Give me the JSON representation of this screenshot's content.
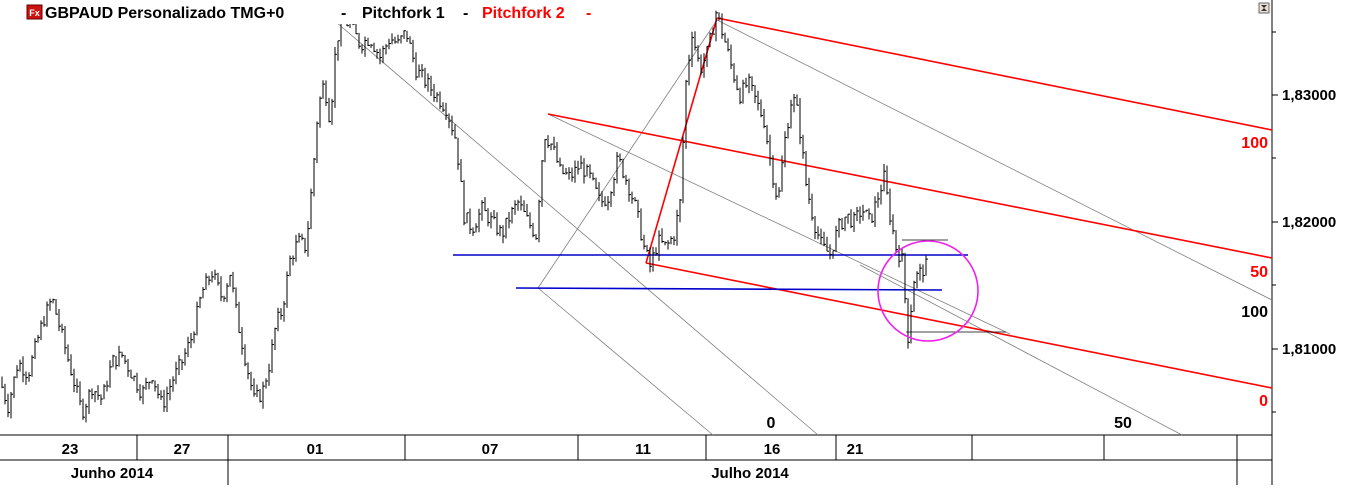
{
  "header": {
    "symbol": "GBPAUD",
    "title": "GBPAUD Personalizado TMG+0",
    "separator": "-",
    "studies": [
      {
        "label": "Pitchfork 1",
        "color": "#000000"
      },
      {
        "label": "Pitchfork 2",
        "color": "#ff0000"
      }
    ],
    "fx_icon_text": "Fx"
  },
  "colors": {
    "price": "#000000",
    "pitchfork_1": "#808080",
    "pitchfork_2": "#ff0000",
    "support": "#0000cc",
    "highlight_circle": "#ee22ee",
    "background": "#ffffff"
  },
  "chart_data": {
    "type": "candlestick",
    "symbol": "GBPAUD",
    "timeframe": "intraday",
    "y_axis": {
      "position": "right",
      "ticks": [
        "1,83000",
        "1,82000",
        "1,81000"
      ],
      "tick_values": [
        1.83,
        1.82,
        1.81
      ],
      "range": [
        1.8035,
        1.8375
      ]
    },
    "x_axis": {
      "day_ticks": [
        "23",
        "27",
        "01",
        "07",
        "11",
        "16",
        "21"
      ],
      "months": [
        "Junho 2014",
        "Julho 2014"
      ]
    },
    "price_path": [
      [
        0,
        1.8075
      ],
      [
        8,
        1.8055
      ],
      [
        18,
        1.809
      ],
      [
        28,
        1.808
      ],
      [
        42,
        1.812
      ],
      [
        52,
        1.814
      ],
      [
        62,
        1.811
      ],
      [
        72,
        1.808
      ],
      [
        82,
        1.805
      ],
      [
        92,
        1.807
      ],
      [
        102,
        1.806
      ],
      [
        112,
        1.809
      ],
      [
        122,
        1.8095
      ],
      [
        132,
        1.808
      ],
      [
        142,
        1.8065
      ],
      [
        152,
        1.808
      ],
      [
        162,
        1.8055
      ],
      [
        172,
        1.8075
      ],
      [
        182,
        1.809
      ],
      [
        192,
        1.811
      ],
      [
        202,
        1.8145
      ],
      [
        212,
        1.816
      ],
      [
        222,
        1.814
      ],
      [
        230,
        1.816
      ],
      [
        238,
        1.812
      ],
      [
        246,
        1.809
      ],
      [
        254,
        1.806
      ],
      [
        262,
        1.8065
      ],
      [
        270,
        1.809
      ],
      [
        276,
        1.812
      ],
      [
        282,
        1.813
      ],
      [
        290,
        1.817
      ],
      [
        298,
        1.8185
      ],
      [
        306,
        1.818
      ],
      [
        312,
        1.823
      ],
      [
        318,
        1.829
      ],
      [
        324,
        1.831
      ],
      [
        330,
        1.828
      ],
      [
        336,
        1.834
      ],
      [
        342,
        1.836
      ],
      [
        350,
        1.8355
      ],
      [
        360,
        1.834
      ],
      [
        370,
        1.8345
      ],
      [
        380,
        1.833
      ],
      [
        390,
        1.8345
      ],
      [
        398,
        1.834
      ],
      [
        406,
        1.835
      ],
      [
        416,
        1.832
      ],
      [
        426,
        1.831
      ],
      [
        436,
        1.83
      ],
      [
        446,
        1.829
      ],
      [
        456,
        1.8265
      ],
      [
        464,
        1.8205
      ],
      [
        472,
        1.8195
      ],
      [
        482,
        1.821
      ],
      [
        492,
        1.82
      ],
      [
        502,
        1.819
      ],
      [
        510,
        1.8205
      ],
      [
        518,
        1.8215
      ],
      [
        528,
        1.82
      ],
      [
        536,
        1.819
      ],
      [
        544,
        1.827
      ],
      [
        552,
        1.826
      ],
      [
        560,
        1.824
      ],
      [
        570,
        1.8235
      ],
      [
        580,
        1.8245
      ],
      [
        590,
        1.8235
      ],
      [
        600,
        1.8215
      ],
      [
        608,
        1.822
      ],
      [
        618,
        1.825
      ],
      [
        628,
        1.823
      ],
      [
        636,
        1.821
      ],
      [
        644,
        1.818
      ],
      [
        650,
        1.8165
      ],
      [
        658,
        1.8185
      ],
      [
        666,
        1.818
      ],
      [
        674,
        1.819
      ],
      [
        680,
        1.8215
      ],
      [
        686,
        1.831
      ],
      [
        692,
        1.835
      ],
      [
        700,
        1.832
      ],
      [
        708,
        1.8335
      ],
      [
        716,
        1.8365
      ],
      [
        724,
        1.8345
      ],
      [
        732,
        1.832
      ],
      [
        740,
        1.83
      ],
      [
        748,
        1.831
      ],
      [
        756,
        1.8295
      ],
      [
        764,
        1.828
      ],
      [
        772,
        1.824
      ],
      [
        778,
        1.8215
      ],
      [
        784,
        1.826
      ],
      [
        792,
        1.83
      ],
      [
        798,
        1.8285
      ],
      [
        806,
        1.823
      ],
      [
        814,
        1.82
      ],
      [
        822,
        1.818
      ],
      [
        830,
        1.8175
      ],
      [
        838,
        1.8195
      ],
      [
        846,
        1.8205
      ],
      [
        854,
        1.82
      ],
      [
        862,
        1.821
      ],
      [
        870,
        1.82
      ],
      [
        878,
        1.822
      ],
      [
        884,
        1.8235
      ],
      [
        890,
        1.8205
      ],
      [
        896,
        1.818
      ],
      [
        902,
        1.817
      ],
      [
        908,
        1.811
      ],
      [
        914,
        1.8155
      ],
      [
        920,
        1.816
      ],
      [
        926,
        1.8165
      ]
    ],
    "pitchfork_1": {
      "median_line_labels": [
        "0",
        "50"
      ],
      "level_labels": [
        "100"
      ]
    },
    "pitchfork_2": {
      "level_labels": [
        "100",
        "50",
        "0"
      ]
    },
    "annotations": [
      "horizontal support lines (blue)",
      "highlight circle (magenta)"
    ]
  }
}
